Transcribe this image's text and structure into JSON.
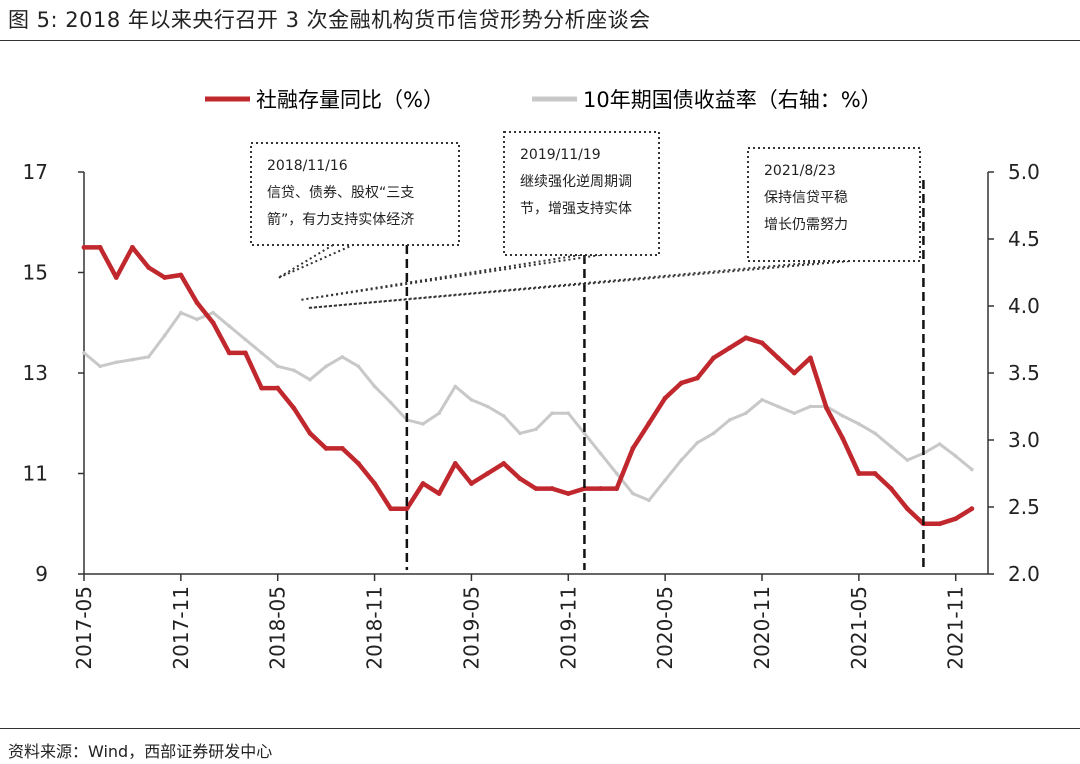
{
  "figure_title": "图 5:   2018 年以来央行召开 3 次金融机构货币信贷形势分析座谈会",
  "source_note": "资料来源：Wind，西部证券研发中心",
  "colors": {
    "series1": "#c0282e",
    "series2": "#c8c8c8",
    "axis": "#333333",
    "text": "#222222"
  },
  "chart_data": {
    "type": "line",
    "title": "",
    "xlabel": "",
    "ylabel_left": "",
    "ylabel_right": "",
    "legend_position": "top-center",
    "grid": false,
    "x_ticks": [
      "2017-05",
      "2017-11",
      "2018-05",
      "2018-11",
      "2019-05",
      "2019-11",
      "2020-05",
      "2020-11",
      "2021-05",
      "2021-11"
    ],
    "ylim_left": [
      9,
      17
    ],
    "y_ticks_left": [
      "17",
      "15",
      "13",
      "11",
      "9"
    ],
    "ylim_right": [
      2.0,
      5.0
    ],
    "y_ticks_right": [
      "5.0",
      "4.5",
      "4.0",
      "3.5",
      "3.0",
      "2.5",
      "2.0"
    ],
    "series": [
      {
        "name": "社融存量同比（%）",
        "axis": "left",
        "x": [
          "2017-05",
          "2017-06",
          "2017-07",
          "2017-08",
          "2017-09",
          "2017-10",
          "2017-11",
          "2017-12",
          "2018-01",
          "2018-02",
          "2018-03",
          "2018-04",
          "2018-05",
          "2018-06",
          "2018-07",
          "2018-08",
          "2018-09",
          "2018-10",
          "2018-11",
          "2018-12",
          "2019-01",
          "2019-02",
          "2019-03",
          "2019-04",
          "2019-05",
          "2019-06",
          "2019-07",
          "2019-08",
          "2019-09",
          "2019-10",
          "2019-11",
          "2019-12",
          "2020-01",
          "2020-02",
          "2020-03",
          "2020-04",
          "2020-05",
          "2020-06",
          "2020-07",
          "2020-08",
          "2020-09",
          "2020-10",
          "2020-11",
          "2020-12",
          "2021-01",
          "2021-02",
          "2021-03",
          "2021-04",
          "2021-05",
          "2021-06",
          "2021-07",
          "2021-08",
          "2021-09",
          "2021-10",
          "2021-11",
          "2021-12"
        ],
        "values": [
          15.5,
          15.5,
          14.9,
          15.5,
          15.1,
          14.9,
          14.95,
          14.4,
          14.0,
          13.4,
          13.4,
          12.7,
          12.7,
          12.3,
          11.8,
          11.5,
          11.5,
          11.2,
          10.8,
          10.3,
          10.3,
          10.8,
          10.6,
          11.2,
          10.8,
          11.0,
          11.2,
          10.9,
          10.7,
          10.7,
          10.6,
          10.7,
          10.7,
          10.7,
          11.5,
          12.0,
          12.5,
          12.8,
          12.9,
          13.3,
          13.5,
          13.7,
          13.6,
          13.3,
          13.0,
          13.3,
          12.3,
          11.7,
          11.0,
          11.0,
          10.7,
          10.3,
          10.0,
          10.0,
          10.1,
          10.3
        ]
      },
      {
        "name": "10年期国债收益率（右轴：%）",
        "axis": "right",
        "x": [
          "2017-05",
          "2017-06",
          "2017-07",
          "2017-08",
          "2017-09",
          "2017-10",
          "2017-11",
          "2017-12",
          "2018-01",
          "2018-02",
          "2018-03",
          "2018-04",
          "2018-05",
          "2018-06",
          "2018-07",
          "2018-08",
          "2018-09",
          "2018-10",
          "2018-11",
          "2018-12",
          "2019-01",
          "2019-02",
          "2019-03",
          "2019-04",
          "2019-05",
          "2019-06",
          "2019-07",
          "2019-08",
          "2019-09",
          "2019-10",
          "2019-11",
          "2019-12",
          "2020-01",
          "2020-02",
          "2020-03",
          "2020-04",
          "2020-05",
          "2020-06",
          "2020-07",
          "2020-08",
          "2020-09",
          "2020-10",
          "2020-11",
          "2020-12",
          "2021-01",
          "2021-02",
          "2021-03",
          "2021-04",
          "2021-05",
          "2021-06",
          "2021-07",
          "2021-08",
          "2021-09",
          "2021-10",
          "2021-11",
          "2021-12"
        ],
        "values": [
          3.65,
          3.55,
          3.58,
          3.6,
          3.62,
          3.78,
          3.95,
          3.9,
          3.95,
          3.85,
          3.75,
          3.65,
          3.55,
          3.52,
          3.45,
          3.55,
          3.62,
          3.55,
          3.4,
          3.28,
          3.15,
          3.12,
          3.2,
          3.4,
          3.3,
          3.25,
          3.18,
          3.05,
          3.08,
          3.2,
          3.2,
          3.05,
          2.9,
          2.75,
          2.6,
          2.55,
          2.7,
          2.85,
          2.98,
          3.05,
          3.15,
          3.2,
          3.3,
          3.25,
          3.2,
          3.25,
          3.25,
          3.18,
          3.12,
          3.05,
          2.95,
          2.85,
          2.9,
          2.97,
          2.88,
          2.78
        ]
      }
    ],
    "annotations": [
      {
        "lines": [
          "2018/11/16",
          "信贷、债券、股权“三支",
          "箭”，有力支持实体经济"
        ],
        "event_x": "2019-01"
      },
      {
        "lines": [
          "2019/11/19",
          "继续强化逆周期调",
          "节，增强支持实体"
        ],
        "event_x": "2019-12"
      },
      {
        "lines": [
          "2021/8/23",
          "保持信贷平稳",
          "增长仍需努力"
        ],
        "event_x": "2021-09"
      }
    ]
  }
}
